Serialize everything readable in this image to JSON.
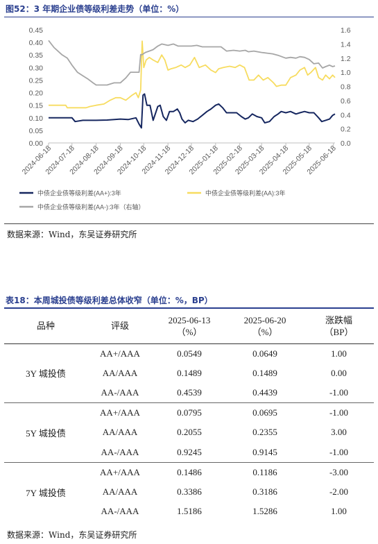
{
  "figure": {
    "title": "图52：3 年期企业债等级利差走势（单位：%）",
    "source": "数据来源：Wind，东吴证券研究所"
  },
  "chart_data": {
    "type": "line",
    "title": "",
    "x_ticks": [
      "2024-06-18",
      "2024-07-18",
      "2024-08-18",
      "2024-09-18",
      "2024-10-18",
      "2024-11-18",
      "2024-12-18",
      "2025-01-18",
      "2025-02-18",
      "2025-03-18",
      "2025-04-18",
      "2025-05-18",
      "2025-06-18"
    ],
    "x_range": [
      "2024-06-18",
      "2025-06-20"
    ],
    "y_left": {
      "ticks": [
        "0.00",
        "0.05",
        "0.10",
        "0.15",
        "0.20",
        "0.25",
        "0.30",
        "0.35",
        "0.40",
        "0.45"
      ],
      "range": [
        0,
        0.45
      ]
    },
    "y_right": {
      "ticks": [
        "0.0",
        "0.2",
        "0.4",
        "0.6",
        "0.8",
        "1.0",
        "1.2",
        "1.4",
        "1.6"
      ],
      "range": [
        0,
        1.6
      ]
    },
    "grid": false,
    "legend_position": "bottom",
    "series": [
      {
        "name": "中债企业债等级利差(AA+):3年",
        "axis": "left",
        "color": "#15265f",
        "points": [
          [
            "2024-06-18",
            0.1
          ],
          [
            "2024-07-05",
            0.1
          ],
          [
            "2024-07-18",
            0.1
          ],
          [
            "2024-07-22",
            0.085
          ],
          [
            "2024-08-01",
            0.09
          ],
          [
            "2024-08-18",
            0.09
          ],
          [
            "2024-09-01",
            0.091
          ],
          [
            "2024-09-18",
            0.095
          ],
          [
            "2024-09-28",
            0.093
          ],
          [
            "2024-10-08",
            0.1
          ],
          [
            "2024-10-12",
            0.075
          ],
          [
            "2024-10-15",
            0.06
          ],
          [
            "2024-10-17",
            0.19
          ],
          [
            "2024-10-19",
            0.195
          ],
          [
            "2024-10-22",
            0.15
          ],
          [
            "2024-10-26",
            0.15
          ],
          [
            "2024-10-30",
            0.09
          ],
          [
            "2024-11-05",
            0.145
          ],
          [
            "2024-11-08",
            0.15
          ],
          [
            "2024-11-12",
            0.105
          ],
          [
            "2024-11-16",
            0.09
          ],
          [
            "2024-11-20",
            0.125
          ],
          [
            "2024-11-25",
            0.125
          ],
          [
            "2024-11-30",
            0.135
          ],
          [
            "2024-12-03",
            0.12
          ],
          [
            "2024-12-06",
            0.095
          ],
          [
            "2024-12-10",
            0.08
          ],
          [
            "2024-12-14",
            0.09
          ],
          [
            "2024-12-20",
            0.085
          ],
          [
            "2024-12-26",
            0.095
          ],
          [
            "2025-01-01",
            0.11
          ],
          [
            "2025-01-07",
            0.125
          ],
          [
            "2025-01-12",
            0.135
          ],
          [
            "2025-01-18",
            0.15
          ],
          [
            "2025-01-22",
            0.155
          ],
          [
            "2025-01-27",
            0.14
          ],
          [
            "2025-02-01",
            0.12
          ],
          [
            "2025-02-08",
            0.12
          ],
          [
            "2025-02-14",
            0.12
          ],
          [
            "2025-02-20",
            0.105
          ],
          [
            "2025-02-25",
            0.095
          ],
          [
            "2025-03-01",
            0.1
          ],
          [
            "2025-03-06",
            0.115
          ],
          [
            "2025-03-12",
            0.105
          ],
          [
            "2025-03-18",
            0.1
          ],
          [
            "2025-03-22",
            0.08
          ],
          [
            "2025-03-28",
            0.085
          ],
          [
            "2025-04-03",
            0.105
          ],
          [
            "2025-04-08",
            0.115
          ],
          [
            "2025-04-12",
            0.125
          ],
          [
            "2025-04-18",
            0.12
          ],
          [
            "2025-04-24",
            0.125
          ],
          [
            "2025-05-01",
            0.115
          ],
          [
            "2025-05-06",
            0.12
          ],
          [
            "2025-05-12",
            0.125
          ],
          [
            "2025-05-18",
            0.12
          ],
          [
            "2025-05-24",
            0.12
          ],
          [
            "2025-05-30",
            0.1
          ],
          [
            "2025-06-03",
            0.085
          ],
          [
            "2025-06-08",
            0.09
          ],
          [
            "2025-06-13",
            0.095
          ],
          [
            "2025-06-17",
            0.11
          ],
          [
            "2025-06-20",
            0.115
          ]
        ]
      },
      {
        "name": "中债企业债等级利差(AA):3年",
        "axis": "left",
        "color": "#f7dc5f",
        "points": [
          [
            "2024-06-18",
            0.15
          ],
          [
            "2024-07-10",
            0.15
          ],
          [
            "2024-07-12",
            0.14
          ],
          [
            "2024-07-18",
            0.14
          ],
          [
            "2024-08-05",
            0.14
          ],
          [
            "2024-08-10",
            0.145
          ],
          [
            "2024-08-18",
            0.15
          ],
          [
            "2024-08-28",
            0.155
          ],
          [
            "2024-09-05",
            0.17
          ],
          [
            "2024-09-12",
            0.18
          ],
          [
            "2024-09-18",
            0.18
          ],
          [
            "2024-09-25",
            0.17
          ],
          [
            "2024-10-03",
            0.19
          ],
          [
            "2024-10-08",
            0.2
          ],
          [
            "2024-10-11",
            0.18
          ],
          [
            "2024-10-14",
            0.21
          ],
          [
            "2024-10-16",
            0.405
          ],
          [
            "2024-10-18",
            0.3
          ],
          [
            "2024-10-21",
            0.33
          ],
          [
            "2024-10-25",
            0.34
          ],
          [
            "2024-10-30",
            0.33
          ],
          [
            "2024-11-05",
            0.32
          ],
          [
            "2024-11-10",
            0.35
          ],
          [
            "2024-11-14",
            0.33
          ],
          [
            "2024-11-18",
            0.29
          ],
          [
            "2024-11-22",
            0.295
          ],
          [
            "2024-11-28",
            0.3
          ],
          [
            "2024-12-05",
            0.31
          ],
          [
            "2024-12-10",
            0.3
          ],
          [
            "2024-12-16",
            0.31
          ],
          [
            "2024-12-22",
            0.34
          ],
          [
            "2024-12-28",
            0.3
          ],
          [
            "2025-01-05",
            0.31
          ],
          [
            "2025-01-12",
            0.29
          ],
          [
            "2025-01-18",
            0.28
          ],
          [
            "2025-01-22",
            0.295
          ],
          [
            "2025-01-28",
            0.3
          ],
          [
            "2025-02-05",
            0.305
          ],
          [
            "2025-02-12",
            0.3
          ],
          [
            "2025-02-18",
            0.31
          ],
          [
            "2025-02-24",
            0.3
          ],
          [
            "2025-03-02",
            0.25
          ],
          [
            "2025-03-08",
            0.25
          ],
          [
            "2025-03-14",
            0.27
          ],
          [
            "2025-03-20",
            0.25
          ],
          [
            "2025-03-26",
            0.26
          ],
          [
            "2025-04-02",
            0.24
          ],
          [
            "2025-04-06",
            0.225
          ],
          [
            "2025-04-12",
            0.23
          ],
          [
            "2025-04-18",
            0.23
          ],
          [
            "2025-04-24",
            0.26
          ],
          [
            "2025-05-01",
            0.27
          ],
          [
            "2025-05-06",
            0.29
          ],
          [
            "2025-05-12",
            0.3
          ],
          [
            "2025-05-16",
            0.27
          ],
          [
            "2025-05-20",
            0.28
          ],
          [
            "2025-05-26",
            0.3
          ],
          [
            "2025-05-30",
            0.26
          ],
          [
            "2025-06-04",
            0.25
          ],
          [
            "2025-06-08",
            0.27
          ],
          [
            "2025-06-13",
            0.255
          ],
          [
            "2025-06-17",
            0.27
          ],
          [
            "2025-06-20",
            0.26
          ]
        ]
      },
      {
        "name": "中债企业债等级利差(AA-):3年（右轴）",
        "axis": "right",
        "color": "#a6a6a6",
        "points": [
          [
            "2024-06-18",
            1.45
          ],
          [
            "2024-06-25",
            1.35
          ],
          [
            "2024-07-05",
            1.25
          ],
          [
            "2024-07-12",
            1.2
          ],
          [
            "2024-07-18",
            1.1
          ],
          [
            "2024-07-25",
            1.0
          ],
          [
            "2024-08-01",
            0.95
          ],
          [
            "2024-08-08",
            0.9
          ],
          [
            "2024-08-14",
            0.85
          ],
          [
            "2024-08-18",
            0.82
          ],
          [
            "2024-08-25",
            0.82
          ],
          [
            "2024-09-01",
            0.82
          ],
          [
            "2024-09-10",
            0.85
          ],
          [
            "2024-09-18",
            0.85
          ],
          [
            "2024-09-25",
            0.92
          ],
          [
            "2024-10-01",
            1.0
          ],
          [
            "2024-10-08",
            1.0
          ],
          [
            "2024-10-12",
            1.0
          ],
          [
            "2024-10-14",
            1.25
          ],
          [
            "2024-10-16",
            1.25
          ],
          [
            "2024-10-20",
            1.28
          ],
          [
            "2024-10-25",
            1.3
          ],
          [
            "2024-10-30",
            1.32
          ],
          [
            "2024-11-05",
            1.37
          ],
          [
            "2024-11-10",
            1.4
          ],
          [
            "2024-11-18",
            1.38
          ],
          [
            "2024-11-25",
            1.4
          ],
          [
            "2024-12-01",
            1.37
          ],
          [
            "2024-12-10",
            1.37
          ],
          [
            "2024-12-18",
            1.37
          ],
          [
            "2024-12-25",
            1.38
          ],
          [
            "2025-01-01",
            1.36
          ],
          [
            "2025-01-10",
            1.36
          ],
          [
            "2025-01-18",
            1.36
          ],
          [
            "2025-01-25",
            1.36
          ],
          [
            "2025-02-01",
            1.3
          ],
          [
            "2025-02-10",
            1.31
          ],
          [
            "2025-02-18",
            1.3
          ],
          [
            "2025-02-25",
            1.31
          ],
          [
            "2025-03-01",
            1.29
          ],
          [
            "2025-03-08",
            1.3
          ],
          [
            "2025-03-18",
            1.28
          ],
          [
            "2025-03-25",
            1.27
          ],
          [
            "2025-04-01",
            1.26
          ],
          [
            "2025-04-08",
            1.24
          ],
          [
            "2025-04-18",
            1.2
          ],
          [
            "2025-04-24",
            1.21
          ],
          [
            "2025-05-01",
            1.2
          ],
          [
            "2025-05-06",
            1.22
          ],
          [
            "2025-05-12",
            1.21
          ],
          [
            "2025-05-18",
            1.18
          ],
          [
            "2025-05-24",
            1.12
          ],
          [
            "2025-05-30",
            1.13
          ],
          [
            "2025-06-04",
            1.06
          ],
          [
            "2025-06-08",
            1.08
          ],
          [
            "2025-06-13",
            1.1
          ],
          [
            "2025-06-17",
            1.08
          ],
          [
            "2025-06-20",
            1.09
          ]
        ]
      }
    ],
    "legend": [
      {
        "label": "中债企业债等级利差(AA+):3年",
        "color": "#15265f"
      },
      {
        "label": "中债企业债等级利差(AA):3年",
        "color": "#f7dc5f"
      },
      {
        "label": "中债企业债等级利差(AA-):3年（右轴）",
        "color": "#a6a6a6"
      }
    ]
  },
  "table": {
    "title": "表18：本周城投债等级利差总体收窄（单位：%，BP）",
    "headers": [
      "品种",
      "评级",
      "2025-06-13",
      "（%）",
      "2025-06-20",
      "（%）",
      "涨跌幅",
      "（BP）"
    ],
    "groups": [
      {
        "name": "3Y 城投债",
        "rows": [
          {
            "rating": "AA+/AAA",
            "v1": "0.0549",
            "v2": "0.0649",
            "chg": "1.00"
          },
          {
            "rating": "AA/AAA",
            "v1": "0.1489",
            "v2": "0.1489",
            "chg": "0.00"
          },
          {
            "rating": "AA-/AAA",
            "v1": "0.4539",
            "v2": "0.4439",
            "chg": "-1.00"
          }
        ]
      },
      {
        "name": "5Y 城投债",
        "rows": [
          {
            "rating": "AA+/AAA",
            "v1": "0.0795",
            "v2": "0.0695",
            "chg": "-1.00"
          },
          {
            "rating": "AA/AAA",
            "v1": "0.2055",
            "v2": "0.2355",
            "chg": "3.00"
          },
          {
            "rating": "AA-/AAA",
            "v1": "0.9245",
            "v2": "0.9145",
            "chg": "-1.00"
          }
        ]
      },
      {
        "name": "7Y 城投债",
        "rows": [
          {
            "rating": "AA+/AAA",
            "v1": "0.1486",
            "v2": "0.1186",
            "chg": "-3.00"
          },
          {
            "rating": "AA/AAA",
            "v1": "0.3386",
            "v2": "0.3186",
            "chg": "-2.00"
          },
          {
            "rating": "AA-/AAA",
            "v1": "1.5186",
            "v2": "1.5286",
            "chg": "1.00"
          }
        ]
      }
    ],
    "source": "数据来源：Wind，东吴证券研究所"
  }
}
